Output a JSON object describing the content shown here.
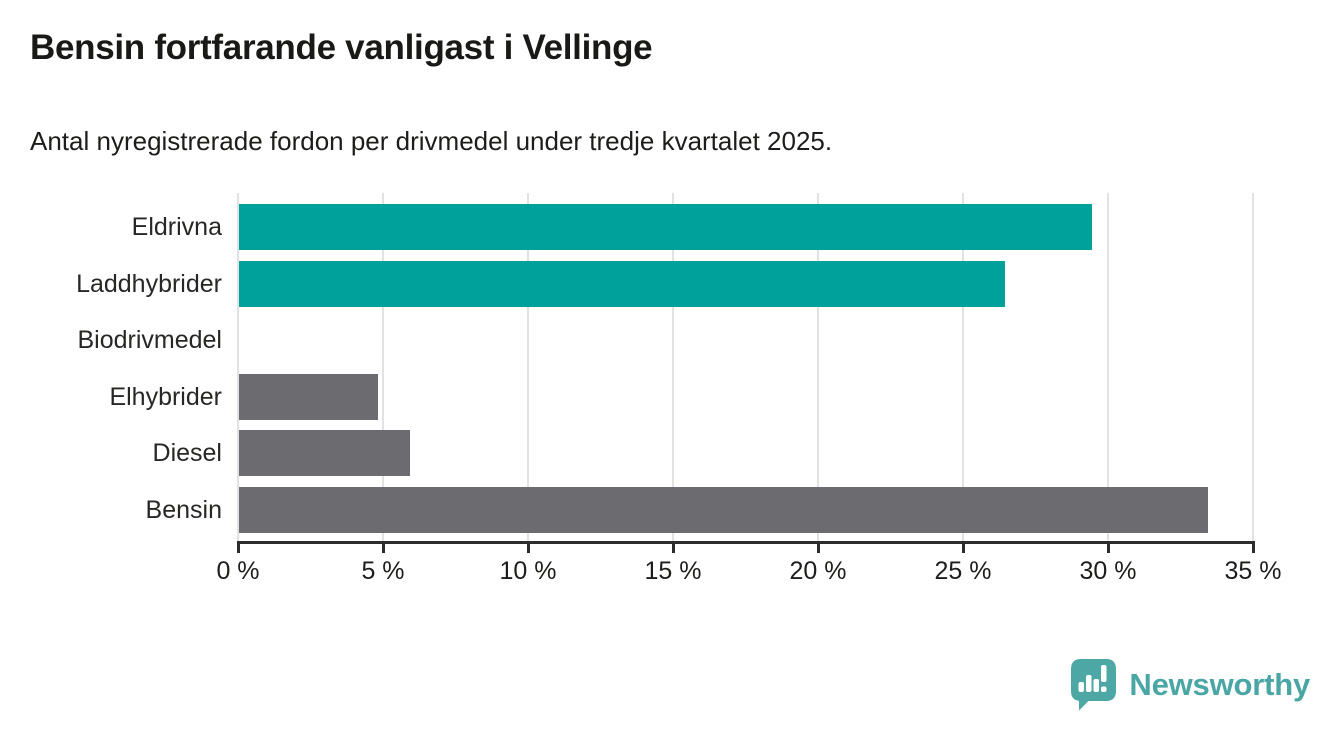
{
  "header": {
    "title": "Bensin fortfarande vanligast i Vellinge",
    "subtitle": "Antal nyregistrerade fordon per drivmedel under tredje kvartalet 2025."
  },
  "chart_data": {
    "type": "bar",
    "orientation": "horizontal",
    "title": "Bensin fortfarande vanligast i Vellinge",
    "subtitle": "Antal nyregistrerade fordon per drivmedel under tredje kvartalet 2025.",
    "categories": [
      "Eldrivna",
      "Laddhybrider",
      "Biodrivmedel",
      "Elhybrider",
      "Diesel",
      "Bensin"
    ],
    "values": [
      29.4,
      26.4,
      0,
      4.8,
      5.9,
      33.4
    ],
    "unit": "%",
    "xlim": [
      0,
      35
    ],
    "xticks": [
      0,
      5,
      10,
      15,
      20,
      25,
      30,
      35
    ],
    "xtick_labels": [
      "0 %",
      "5 %",
      "10 %",
      "15 %",
      "20 %",
      "25 %",
      "30 %",
      "35 %"
    ],
    "bar_colors": [
      "#00a09b",
      "#00a09b",
      "#6b6b70",
      "#6b6b70",
      "#6b6b70",
      "#6b6b70"
    ],
    "highlight_color": "#00a09b",
    "default_color": "#6b6b70",
    "grid": true,
    "legend": false
  },
  "branding": {
    "name": "Newsworthy",
    "color": "#4aa6a4",
    "icon": "bar-chart-speech-bubble-icon"
  }
}
